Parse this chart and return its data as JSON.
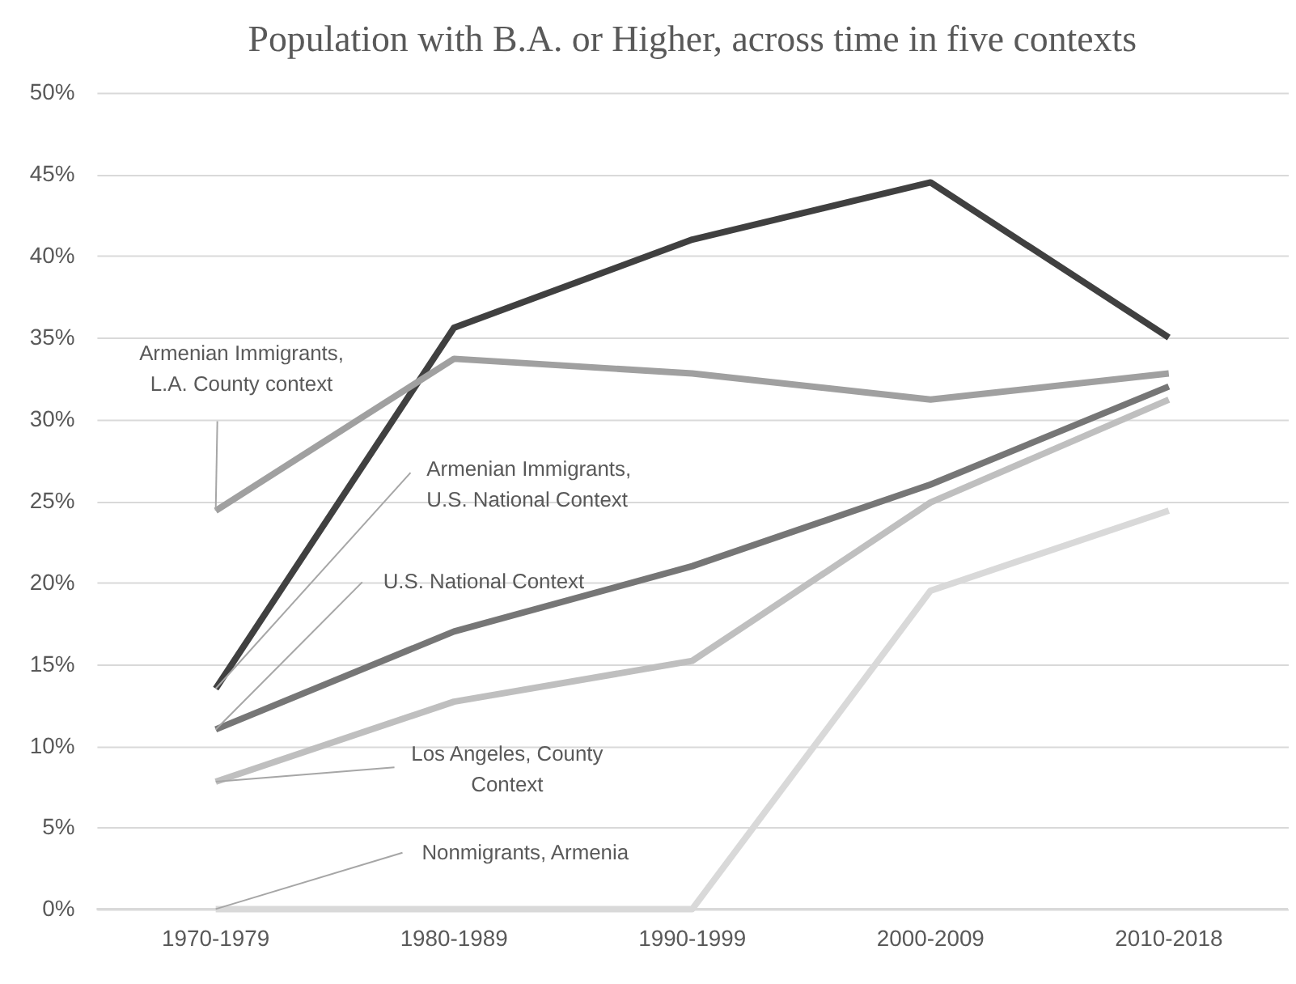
{
  "chart_data": {
    "type": "line",
    "title": "Population with B.A. or Higher, across time in five contexts",
    "categories": [
      "1970-1979",
      "1980-1989",
      "1990-1999",
      "2000-2009",
      "2010-2018"
    ],
    "series": [
      {
        "name": "Armenian Immigrants, U.S. National Context",
        "color": "#404040",
        "values": [
          13.5,
          35.6,
          41,
          44.5,
          35
        ]
      },
      {
        "name": "Armenian Immigrants, L.A. County context",
        "color": "#a0a0a0",
        "values": [
          24.4,
          33.7,
          32.8,
          31.2,
          32.8
        ]
      },
      {
        "name": "U.S. National Context",
        "color": "#767676",
        "values": [
          11,
          17,
          21,
          26,
          32
        ]
      },
      {
        "name": "Los Angeles, County Context",
        "color": "#bfbfbf",
        "values": [
          7.8,
          12.7,
          15.2,
          24.9,
          31.2
        ]
      },
      {
        "name": "Nonmigrants, Armenia",
        "color": "#d9d9d9",
        "values": [
          0,
          0,
          0,
          19.5,
          24.4
        ]
      }
    ],
    "ylim": [
      0,
      50
    ],
    "yticks": [
      {
        "value": 0,
        "label": "0%"
      },
      {
        "value": 5,
        "label": "5%"
      },
      {
        "value": 10,
        "label": "10%"
      },
      {
        "value": 15,
        "label": "15%"
      },
      {
        "value": 20,
        "label": "20%"
      },
      {
        "value": 25,
        "label": "25%"
      },
      {
        "value": 30,
        "label": "30%"
      },
      {
        "value": 35,
        "label": "35%"
      },
      {
        "value": 40,
        "label": "40%"
      },
      {
        "value": 45,
        "label": "45%"
      },
      {
        "value": 50,
        "label": "50%"
      }
    ],
    "grid": "y",
    "marker": "none",
    "line_style": "solid"
  }
}
